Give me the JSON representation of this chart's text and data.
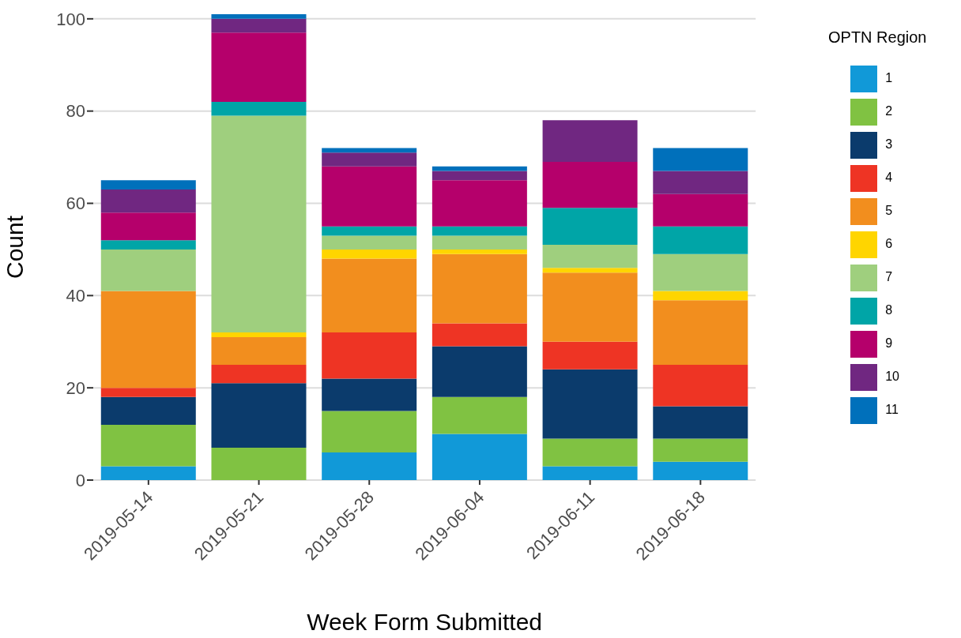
{
  "chart_data": {
    "type": "bar",
    "stacked": true,
    "xlabel": "Week Form Submitted",
    "ylabel": "Count",
    "legend_title": "OPTN Region",
    "legend": "top right",
    "grid": "y",
    "categories": [
      "2019-05-14",
      "2019-05-21",
      "2019-05-28",
      "2019-06-04",
      "2019-06-11",
      "2019-06-18"
    ],
    "ylim": [
      0,
      101
    ],
    "yticks": [
      0,
      20,
      40,
      60,
      80,
      100
    ],
    "series": [
      {
        "name": "1",
        "color": "#1199d8",
        "values": [
          3,
          0,
          6,
          10,
          3,
          4
        ]
      },
      {
        "name": "2",
        "color": "#80c242",
        "values": [
          9,
          7,
          9,
          8,
          6,
          5
        ]
      },
      {
        "name": "3",
        "color": "#0b3b6c",
        "values": [
          6,
          14,
          7,
          11,
          15,
          7
        ]
      },
      {
        "name": "4",
        "color": "#ee3424",
        "values": [
          2,
          4,
          10,
          5,
          6,
          9
        ]
      },
      {
        "name": "5",
        "color": "#f28e1e",
        "values": [
          21,
          6,
          16,
          15,
          15,
          14
        ]
      },
      {
        "name": "6",
        "color": "#ffd500",
        "values": [
          0,
          1,
          2,
          1,
          1,
          2
        ]
      },
      {
        "name": "7",
        "color": "#9fcf7e",
        "values": [
          9,
          47,
          3,
          3,
          5,
          8
        ]
      },
      {
        "name": "8",
        "color": "#00a5a7",
        "values": [
          2,
          3,
          2,
          2,
          8,
          6
        ]
      },
      {
        "name": "9",
        "color": "#b5006b",
        "values": [
          6,
          15,
          13,
          10,
          10,
          7
        ]
      },
      {
        "name": "10",
        "color": "#702781",
        "values": [
          5,
          3,
          3,
          2,
          9,
          5
        ]
      },
      {
        "name": "11",
        "color": "#0070bb",
        "values": [
          2,
          1,
          1,
          1,
          0,
          5
        ]
      }
    ]
  }
}
